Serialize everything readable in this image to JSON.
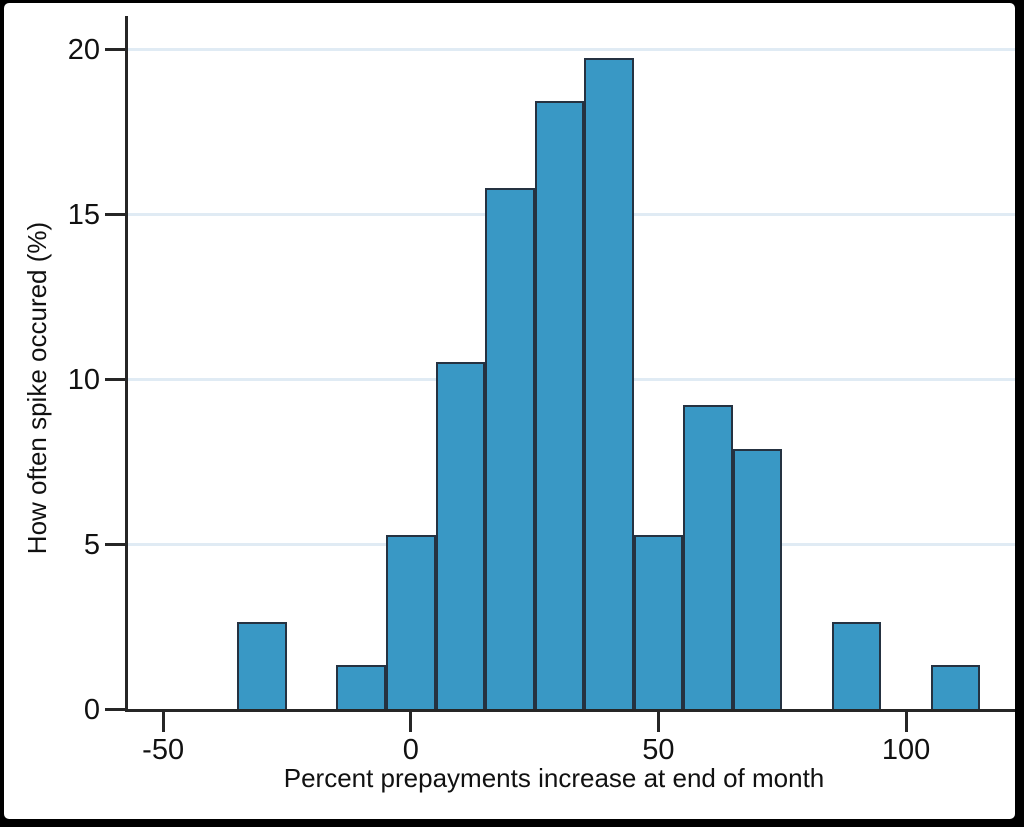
{
  "window": {
    "frame_color": "#000000",
    "canvas_color": "#ffffff"
  },
  "chart_data": {
    "type": "bar",
    "subtype": "histogram",
    "title": "",
    "xlabel": "Percent prepayments increase at end of month",
    "ylabel": "How often spike occured (%)",
    "xticks": [
      -50,
      0,
      50,
      100
    ],
    "yticks": [
      0,
      5,
      10,
      15,
      20
    ],
    "xlim": [
      -57.7,
      122
    ],
    "ylim": [
      0,
      21
    ],
    "grid": "horizontal-light-blue",
    "legend": "none",
    "bars": [
      {
        "x0": -35,
        "x1": -25,
        "value": 2.63
      },
      {
        "x0": -15,
        "x1": -5,
        "value": 1.32
      },
      {
        "x0": -5,
        "x1": 5,
        "value": 5.26
      },
      {
        "x0": 5,
        "x1": 15,
        "value": 10.53
      },
      {
        "x0": 15,
        "x1": 25,
        "value": 15.79
      },
      {
        "x0": 25,
        "x1": 35,
        "value": 18.42
      },
      {
        "x0": 35,
        "x1": 45,
        "value": 19.74
      },
      {
        "x0": 45,
        "x1": 55,
        "value": 5.26
      },
      {
        "x0": 55,
        "x1": 65,
        "value": 9.21
      },
      {
        "x0": 65,
        "x1": 75,
        "value": 7.89
      },
      {
        "x0": 85,
        "x1": 95,
        "value": 2.63
      },
      {
        "x0": 105,
        "x1": 115,
        "value": 1.32
      }
    ],
    "colors": {
      "bar_fill": "#3998C5",
      "bar_edge": "#253241",
      "gridline": "#e0ebf4",
      "axis": "#262626",
      "text": "#111111"
    }
  }
}
